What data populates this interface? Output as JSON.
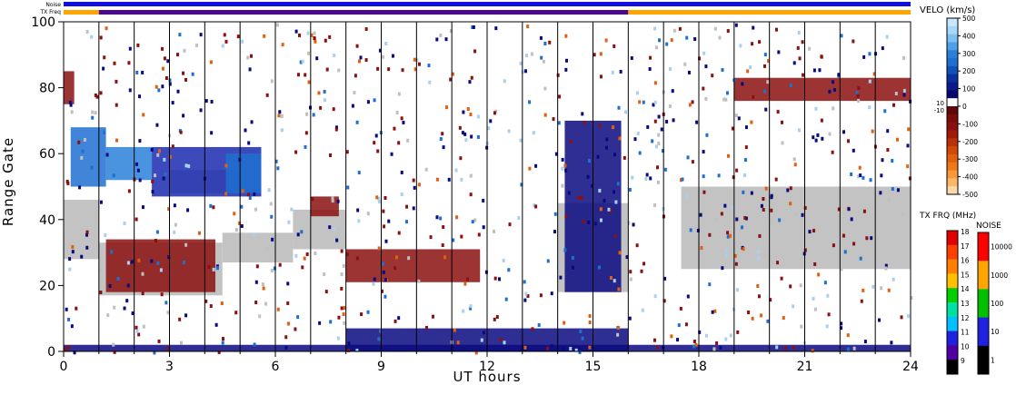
{
  "chart_data": {
    "type": "heatmap",
    "title": "",
    "xlabel": "UT hours",
    "ylabel": "Range Gate",
    "xlim": [
      0,
      24
    ],
    "ylim": [
      0,
      100
    ],
    "x_ticks": [
      0,
      3,
      6,
      9,
      12,
      15,
      18,
      21,
      24
    ],
    "y_ticks": [
      0,
      20,
      40,
      60,
      80,
      100
    ],
    "grid": "vertical hour lines",
    "top_strips": {
      "noise_label": "Noise",
      "txfreq_label": "TX Freq",
      "noise_color": "#1010e0",
      "txfreq_segments": [
        {
          "start": 0,
          "end": 1,
          "color": "#ffa500"
        },
        {
          "start": 1,
          "end": 16,
          "color": "#4b0a8c"
        },
        {
          "start": 16,
          "end": 24,
          "color": "#ffa500"
        }
      ]
    },
    "velocity_colorbar": {
      "label": "VELO (km/s)",
      "ticks": [
        "500",
        "400",
        "300",
        "200",
        "100",
        "0",
        "-100",
        "-200",
        "-300",
        "-400",
        "-500"
      ],
      "gap_labels": [
        "10",
        "-10"
      ],
      "range": [
        -500,
        500
      ]
    },
    "txfreq_colorbar": {
      "label": "TX FRQ (MHz)",
      "ticks": [
        "18",
        "17",
        "16",
        "15",
        "14",
        "13",
        "12",
        "11",
        "10",
        "9"
      ]
    },
    "noise_colorbar": {
      "label": "NOISE",
      "ticks": [
        "10000",
        "1000",
        "100",
        "10",
        "1"
      ]
    },
    "regions": [
      {
        "kind": "groundscatter",
        "x0": 0,
        "x1": 1,
        "y0": 28,
        "y1": 46,
        "color": "#c0c0c0"
      },
      {
        "kind": "groundscatter",
        "x0": 1,
        "x1": 4.5,
        "y0": 17,
        "y1": 33,
        "color": "#c0c0c0"
      },
      {
        "kind": "groundscatter",
        "x0": 4.5,
        "x1": 6.5,
        "y0": 27,
        "y1": 36,
        "color": "#c0c0c0"
      },
      {
        "kind": "groundscatter",
        "x0": 6.5,
        "x1": 8,
        "y0": 31,
        "y1": 43,
        "color": "#c0c0c0"
      },
      {
        "kind": "groundscatter",
        "x0": 3,
        "x1": 5,
        "y0": 48,
        "y1": 55,
        "color": "#c0c0c0"
      },
      {
        "kind": "groundscatter",
        "x0": 14,
        "x1": 16,
        "y0": 18,
        "y1": 45,
        "color": "#c0c0c0"
      },
      {
        "kind": "groundscatter",
        "x0": 17.5,
        "x1": 24,
        "y0": 25,
        "y1": 50,
        "color": "#c0c0c0"
      },
      {
        "kind": "velocity",
        "x0": 0.2,
        "x1": 1.2,
        "y0": 50,
        "y1": 68,
        "color": "#1e70d0"
      },
      {
        "kind": "velocity",
        "x0": 1.2,
        "x1": 2.5,
        "y0": 52,
        "y1": 62,
        "color": "#2a80d8"
      },
      {
        "kind": "velocity",
        "x0": 2.5,
        "x1": 5.6,
        "y0": 47,
        "y1": 62,
        "color": "#1a2ab0"
      },
      {
        "kind": "velocity",
        "x0": 4.6,
        "x1": 5.6,
        "y0": 48,
        "y1": 60,
        "color": "#1e70d0"
      },
      {
        "kind": "velocity",
        "x0": 1.2,
        "x1": 4.3,
        "y0": 18,
        "y1": 34,
        "color": "#8b1010"
      },
      {
        "kind": "velocity",
        "x0": 0,
        "x1": 0.3,
        "y0": 75,
        "y1": 85,
        "color": "#8b1010"
      },
      {
        "kind": "velocity",
        "x0": 7,
        "x1": 7.8,
        "y0": 41,
        "y1": 47,
        "color": "#8b1010"
      },
      {
        "kind": "velocity",
        "x0": 8,
        "x1": 11.8,
        "y0": 21,
        "y1": 31,
        "color": "#8b1010"
      },
      {
        "kind": "velocity",
        "x0": 14.2,
        "x1": 15.8,
        "y0": 18,
        "y1": 70,
        "color": "#0a0a80"
      },
      {
        "kind": "velocity",
        "x0": 19,
        "x1": 24,
        "y0": 76,
        "y1": 83,
        "color": "#8b1010"
      },
      {
        "kind": "velocity",
        "x0": 8,
        "x1": 16,
        "y0": 0,
        "y1": 7,
        "color": "#0a0a80"
      },
      {
        "kind": "velocity",
        "x0": 0,
        "x1": 24,
        "y0": 0,
        "y1": 2,
        "color": "#0a0a80"
      }
    ]
  }
}
